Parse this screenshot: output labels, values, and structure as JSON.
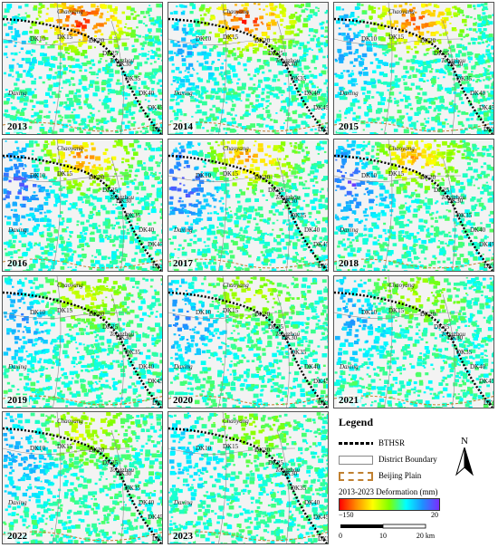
{
  "panels": [
    {
      "year": "2013",
      "intensity": 1.0,
      "west": 0.25
    },
    {
      "year": "2014",
      "intensity": 0.95,
      "west": 0.45
    },
    {
      "year": "2015",
      "intensity": 0.9,
      "west": 0.55
    },
    {
      "year": "2016",
      "intensity": 0.75,
      "west": 0.8
    },
    {
      "year": "2017",
      "intensity": 0.7,
      "west": 0.9
    },
    {
      "year": "2018",
      "intensity": 0.65,
      "west": 0.85
    },
    {
      "year": "2019",
      "intensity": 0.4,
      "west": 0.55
    },
    {
      "year": "2020",
      "intensity": 0.35,
      "west": 0.6
    },
    {
      "year": "2021",
      "intensity": 0.3,
      "west": 0.45
    },
    {
      "year": "2022",
      "intensity": 0.4,
      "west": 0.5
    },
    {
      "year": "2023",
      "intensity": 0.25,
      "west": 0.3
    }
  ],
  "map_labels": {
    "district_top": "Chaoyang",
    "district_right": "Tongzhou",
    "district_left": "Daxing",
    "dk_labels": [
      "DK10",
      "DK15",
      "DK20",
      "DK25",
      "DK30",
      "DK35",
      "DK40",
      "DK45",
      "DK50"
    ]
  },
  "legend": {
    "title": "Legend",
    "items": [
      "BTHSR",
      "District Boundary",
      "Beijing Plain"
    ],
    "colorbar_title": "2013-2023 Deformation (mm)",
    "colorbar_min": "−150",
    "colorbar_max": "20",
    "colors": [
      "#ff0000",
      "#ff8c00",
      "#ffff00",
      "#7fff00",
      "#00ffff",
      "#1e90ff",
      "#7b2cff"
    ],
    "scale_ticks": [
      "0",
      "10",
      "20 km"
    ],
    "north": "N"
  }
}
